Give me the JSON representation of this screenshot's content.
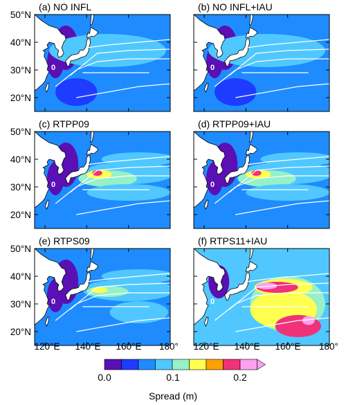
{
  "figure": {
    "lat_ticks": [
      "20°N",
      "30°N",
      "40°N",
      "50°N"
    ],
    "lon_ticks_left": [
      "120°E",
      "140°E",
      "160°E",
      "180°"
    ],
    "lon_ticks_right": [
      "120°E",
      "140°E",
      "160°E",
      "180°"
    ],
    "contour_label": "0"
  },
  "chart_data": {
    "type": "heatmap",
    "colorbar": {
      "label": "Spread (m)",
      "tick_values": [
        0.0,
        0.1,
        0.2
      ],
      "tick_labels": [
        "0.0",
        "0.1",
        "0.2"
      ],
      "levels": [
        0.0,
        0.025,
        0.05,
        0.075,
        0.1,
        0.125,
        0.15,
        0.175,
        0.2
      ],
      "colors": [
        "#5a10b4",
        "#1e3cff",
        "#1e8cff",
        "#50c8ff",
        "#96f0c8",
        "#ffff50",
        "#ffa000",
        "#f03278",
        "#ffa0f0"
      ],
      "extend": "max"
    },
    "lon_range": [
      115,
      180
    ],
    "lat_range": [
      15,
      50
    ],
    "panels": [
      {
        "label": "(a) NO INFL",
        "max_spread": 0.08
      },
      {
        "label": "(b) NO INFL+IAU",
        "max_spread": 0.07
      },
      {
        "label": "(c) RTPP09",
        "max_spread": 0.16
      },
      {
        "label": "(d) RTPP09+IAU",
        "max_spread": 0.16
      },
      {
        "label": "(e) RTPS09",
        "max_spread": 0.13
      },
      {
        "label": "(f) RTPS11+IAU",
        "max_spread": 0.22
      }
    ]
  }
}
